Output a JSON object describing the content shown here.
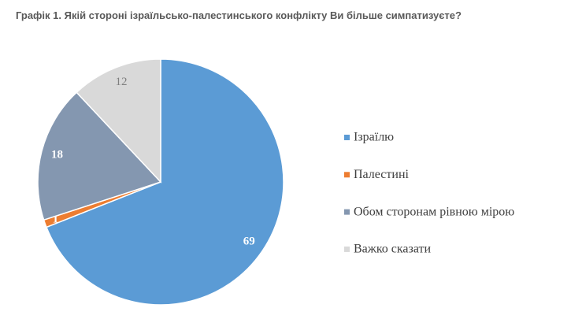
{
  "chart_data": {
    "type": "pie",
    "title": "Графік 1. Якій стороні ізраїльсько-палестинського конфлікту Ви більше симпатизуєте?",
    "categories": [
      "Ізраїлю",
      "Палестині",
      "Обом сторонам рівною мірою",
      "Важко сказати"
    ],
    "values": [
      69,
      1,
      18,
      12
    ],
    "colors": [
      "#5b9bd5",
      "#ed7d31",
      "#8497b0",
      "#d9d9d9"
    ],
    "legend": "right"
  }
}
